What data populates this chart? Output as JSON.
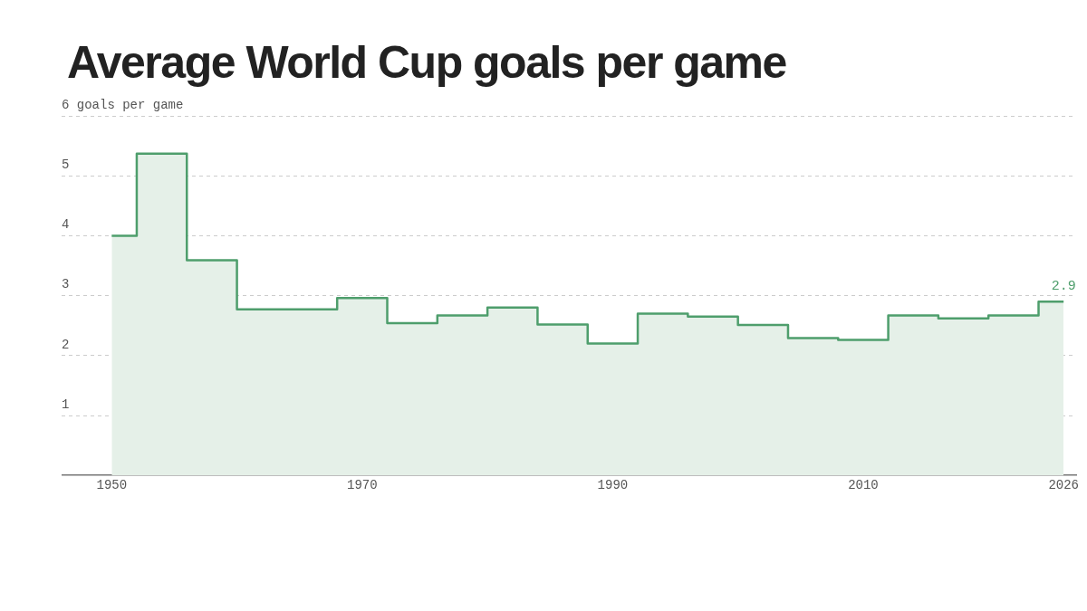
{
  "chart_data": {
    "type": "step",
    "title": "Average World Cup goals per game",
    "x": [
      1950,
      1954,
      1958,
      1962,
      1966,
      1970,
      1974,
      1978,
      1982,
      1986,
      1990,
      1994,
      1998,
      2002,
      2006,
      2010,
      2014,
      2018,
      2022,
      2026
    ],
    "series": [
      {
        "color": "#4e9e6c",
        "values": [
          4.0,
          5.37,
          3.59,
          2.77,
          2.77,
          2.96,
          2.54,
          2.67,
          2.8,
          2.52,
          2.2,
          2.7,
          2.65,
          2.51,
          2.29,
          2.26,
          2.67,
          2.62,
          2.67,
          2.9
        ],
        "value_labels": [
          null,
          null,
          null,
          null,
          null,
          null,
          null,
          null,
          null,
          null,
          null,
          null,
          null,
          null,
          null,
          null,
          null,
          null,
          null,
          "2.9"
        ]
      },
      {
        "type": "area",
        "color": "#e5f0e8",
        "values": [
          4.0,
          5.37,
          3.59,
          2.77,
          2.77,
          2.96,
          2.54,
          2.67,
          2.8,
          2.52,
          2.2,
          2.7,
          2.65,
          2.51,
          2.29,
          2.26,
          2.67,
          2.62,
          2.67,
          2.9
        ]
      }
    ],
    "xlim": [
      1946,
      2027
    ],
    "xticks": [
      1950,
      1970,
      1990,
      2010,
      2026
    ],
    "ylim": [
      0,
      6
    ],
    "yticks": [
      1,
      2,
      3,
      4,
      5,
      {
        "value": 6,
        "label": "6 goals per game"
      }
    ],
    "grid": "y",
    "legend": false,
    "marker": "none"
  }
}
